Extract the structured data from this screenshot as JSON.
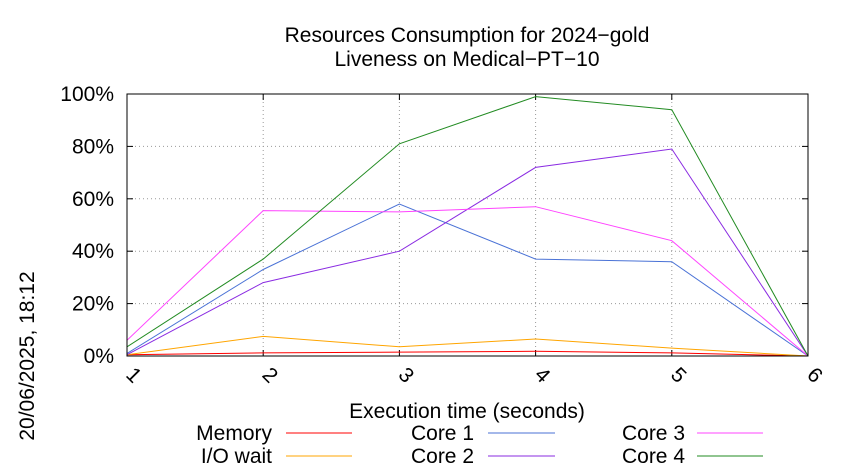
{
  "chart_data": {
    "type": "line",
    "title": "Resources Consumption for 2024−gold",
    "subtitle": "Liveness on Medical−PT−10",
    "xlabel": "Execution time (seconds)",
    "ylabel": "",
    "timestamp": "20/06/2025, 18:12",
    "x": [
      1,
      2,
      3,
      4,
      5,
      6
    ],
    "xlim": [
      1,
      6
    ],
    "ylim": [
      0,
      100
    ],
    "x_ticks": [
      "1",
      "2",
      "3",
      "4",
      "5",
      "6"
    ],
    "y_ticks": [
      "0%",
      "20%",
      "40%",
      "60%",
      "80%",
      "100%"
    ],
    "y_tick_values": [
      0,
      20,
      40,
      60,
      80,
      100
    ],
    "grid": true,
    "legend_position": "bottom",
    "series": [
      {
        "name": "Memory",
        "color": "#ff0000",
        "values": [
          0.5,
          1.2,
          1.5,
          1.8,
          1.2,
          0
        ]
      },
      {
        "name": "I/O wait",
        "color": "#ffa500",
        "values": [
          0.5,
          7.5,
          3.5,
          6.5,
          3,
          0
        ]
      },
      {
        "name": "Core 1",
        "color": "#4a72d6",
        "values": [
          1,
          33,
          58,
          37,
          36,
          0
        ]
      },
      {
        "name": "Core 2",
        "color": "#8a2be2",
        "values": [
          0.5,
          28,
          40,
          72,
          79,
          0
        ]
      },
      {
        "name": "Core 3",
        "color": "#ff44ff",
        "values": [
          6,
          55.5,
          55,
          57,
          44,
          0
        ]
      },
      {
        "name": "Core 4",
        "color": "#228b22",
        "values": [
          3.5,
          37,
          81,
          99,
          94,
          0
        ]
      }
    ]
  }
}
